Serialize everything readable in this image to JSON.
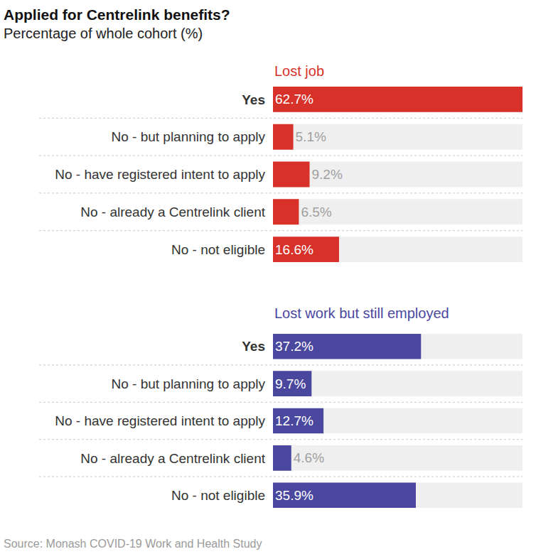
{
  "title": "Applied for Centrelink benefits?",
  "subtitle": "Percentage of whole cohort (%)",
  "source": "Source: Monash COVID-19 Work and Health Study",
  "chart_data": [
    {
      "type": "bar",
      "orientation": "horizontal",
      "title": "Lost job",
      "categories": [
        "Yes",
        "No - but planning to apply",
        "No - have registered intent to apply",
        "No - already a Centrelink client",
        "No - not eligible"
      ],
      "values": [
        62.7,
        5.1,
        9.2,
        6.5,
        16.6
      ],
      "value_labels": [
        "62.7%",
        "5.1%",
        "9.2%",
        "6.5%",
        "16.6%"
      ],
      "color": "#d7312a",
      "xlim": [
        0,
        62.7
      ],
      "grid": false,
      "data_labels": true,
      "tick_labels": "y"
    },
    {
      "type": "bar",
      "orientation": "horizontal",
      "title": "Lost work but still employed",
      "categories": [
        "Yes",
        "No - but planning to apply",
        "No - have registered intent to apply",
        "No - already a Centrelink client",
        "No - not eligible"
      ],
      "values": [
        37.2,
        9.7,
        12.7,
        4.6,
        35.9
      ],
      "value_labels": [
        "37.2%",
        "9.7%",
        "12.7%",
        "4.6%",
        "35.9%"
      ],
      "color": "#4a479f",
      "xlim": [
        0,
        62.7
      ],
      "grid": false,
      "data_labels": true,
      "tick_labels": "y"
    }
  ]
}
